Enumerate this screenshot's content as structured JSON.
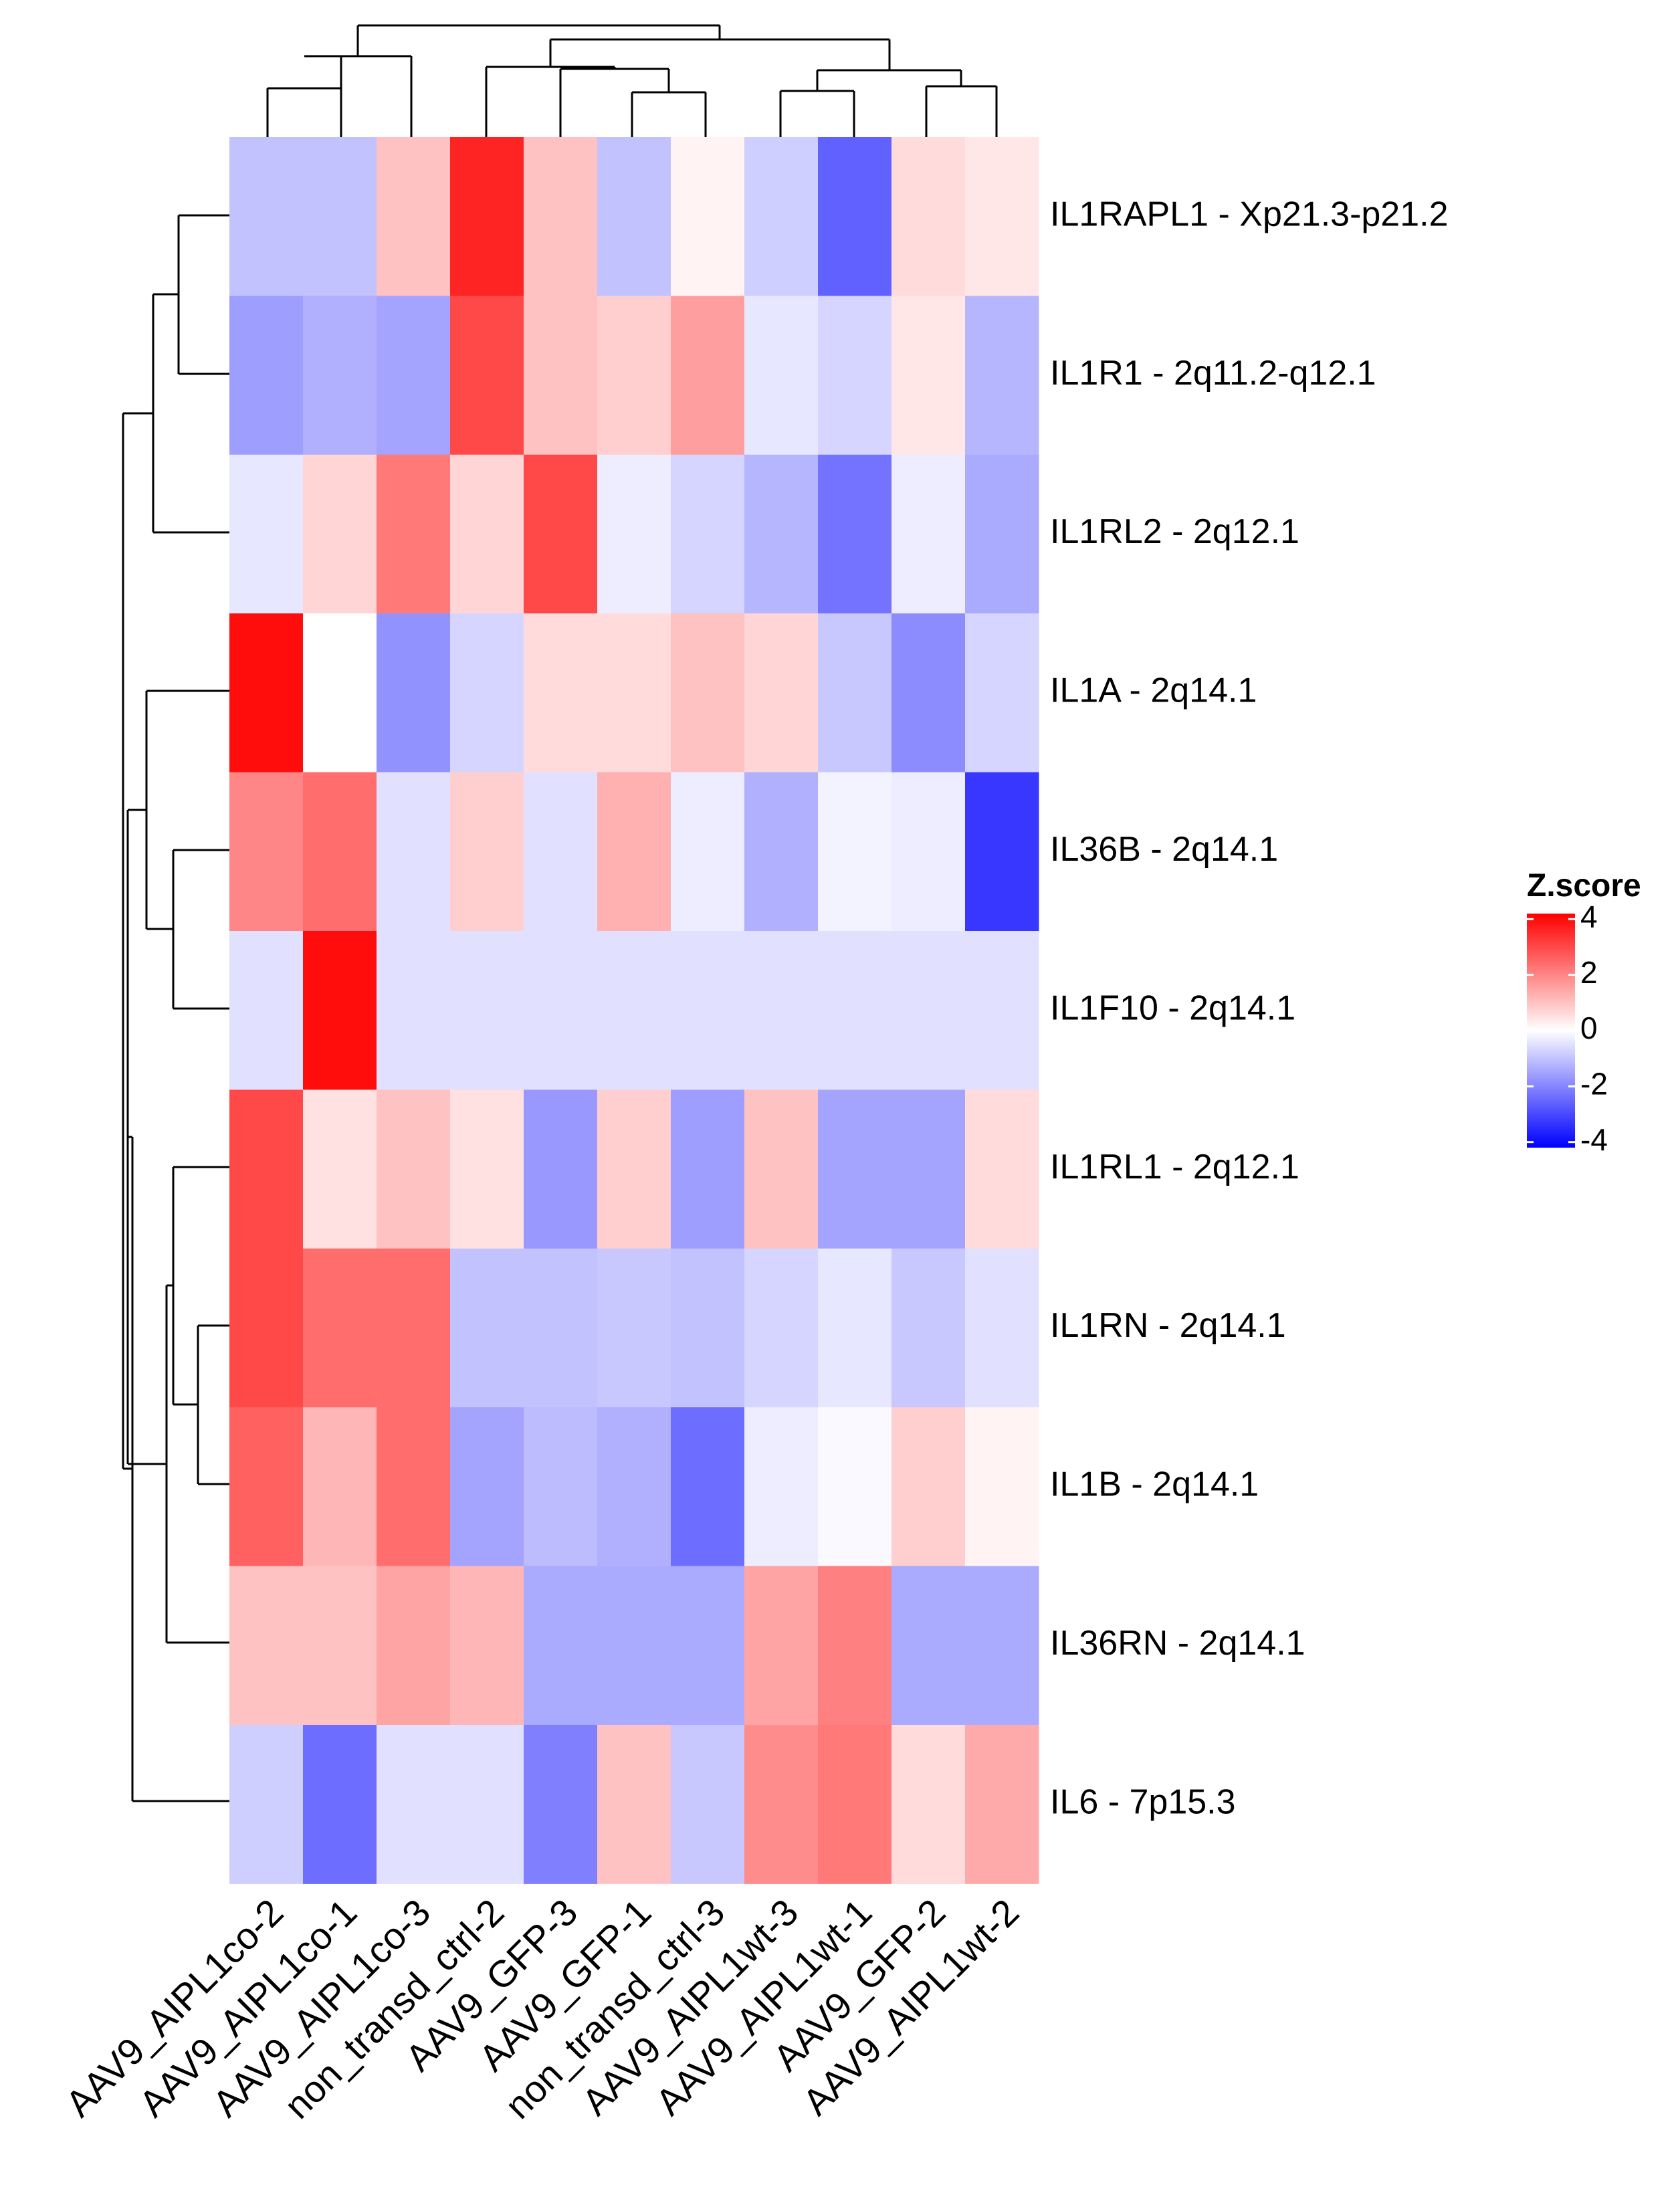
{
  "chart_data": {
    "type": "heatmap",
    "title": "",
    "rows": [
      "IL1RAPL1 - Xp21.3-p21.2",
      "IL1R1 - 2q11.2-q12.1",
      "IL1RL2 - 2q12.1",
      "IL1A - 2q14.1",
      "IL36B - 2q14.1",
      "IL1F10 - 2q14.1",
      "IL1RL1 - 2q12.1",
      "IL1RN - 2q14.1",
      "IL1B - 2q14.1",
      "IL36RN - 2q14.1",
      "IL6 - 7p15.3"
    ],
    "columns": [
      "AAV9_AIPL1co-2",
      "AAV9_AIPL1co-1",
      "AAV9_AIPL1co-3",
      "non_transd_ctrl-2",
      "AAV9_GFP-3",
      "AAV9_GFP-1",
      "non_transd_ctrl-3",
      "AAV9_AIPL1wt-3",
      "AAV9_AIPL1wt-1",
      "AAV9_GFP-2",
      "AAV9_AIPL1wt-2"
    ],
    "values": [
      [
        -1.0,
        -1.0,
        1.0,
        3.6,
        1.0,
        -1.0,
        0.2,
        -0.8,
        -2.6,
        0.6,
        0.4
      ],
      [
        -1.6,
        -1.3,
        -1.5,
        3.0,
        1.0,
        0.8,
        1.6,
        -0.4,
        -0.7,
        0.4,
        -1.2
      ],
      [
        -0.4,
        0.7,
        2.2,
        0.7,
        3.0,
        -0.3,
        -0.7,
        -1.2,
        -2.3,
        -0.3,
        -1.4
      ],
      [
        4.0,
        0.0,
        -1.8,
        -0.7,
        0.6,
        0.6,
        1.0,
        0.7,
        -0.9,
        -1.9,
        -0.7
      ],
      [
        2.0,
        2.4,
        -0.5,
        0.8,
        -0.5,
        1.3,
        -0.3,
        -1.3,
        -0.2,
        -0.3,
        -3.3
      ],
      [
        -0.5,
        4.0,
        -0.5,
        -0.5,
        -0.5,
        -0.5,
        -0.5,
        -0.5,
        -0.5,
        -0.5,
        -0.5
      ],
      [
        3.0,
        0.5,
        1.0,
        0.5,
        -1.7,
        0.8,
        -1.6,
        1.0,
        -1.5,
        -1.5,
        0.6
      ],
      [
        3.0,
        2.4,
        2.4,
        -1.0,
        -1.0,
        -0.9,
        -1.0,
        -0.7,
        -0.4,
        -0.9,
        -0.5
      ],
      [
        2.6,
        1.2,
        2.4,
        -1.5,
        -1.1,
        -1.3,
        -2.4,
        -0.3,
        -0.1,
        0.8,
        0.2
      ],
      [
        1.0,
        1.0,
        1.5,
        1.2,
        -1.4,
        -1.4,
        -1.4,
        1.5,
        2.1,
        -1.4,
        -1.4
      ],
      [
        -0.8,
        -2.4,
        -0.5,
        -0.5,
        -2.1,
        1.0,
        -0.9,
        1.9,
        2.2,
        0.6,
        1.4
      ]
    ],
    "legend": {
      "title": "Z.score",
      "ticks": [
        "4",
        "2",
        "0",
        "-2",
        "-4"
      ],
      "tick_values": [
        4,
        2,
        0,
        -2,
        -4
      ],
      "range": [
        -4.2,
        4.2
      ],
      "position": "right"
    },
    "colors": {
      "low": "#0000ff",
      "mid": "#ffffff",
      "high": "#ff0000"
    }
  }
}
